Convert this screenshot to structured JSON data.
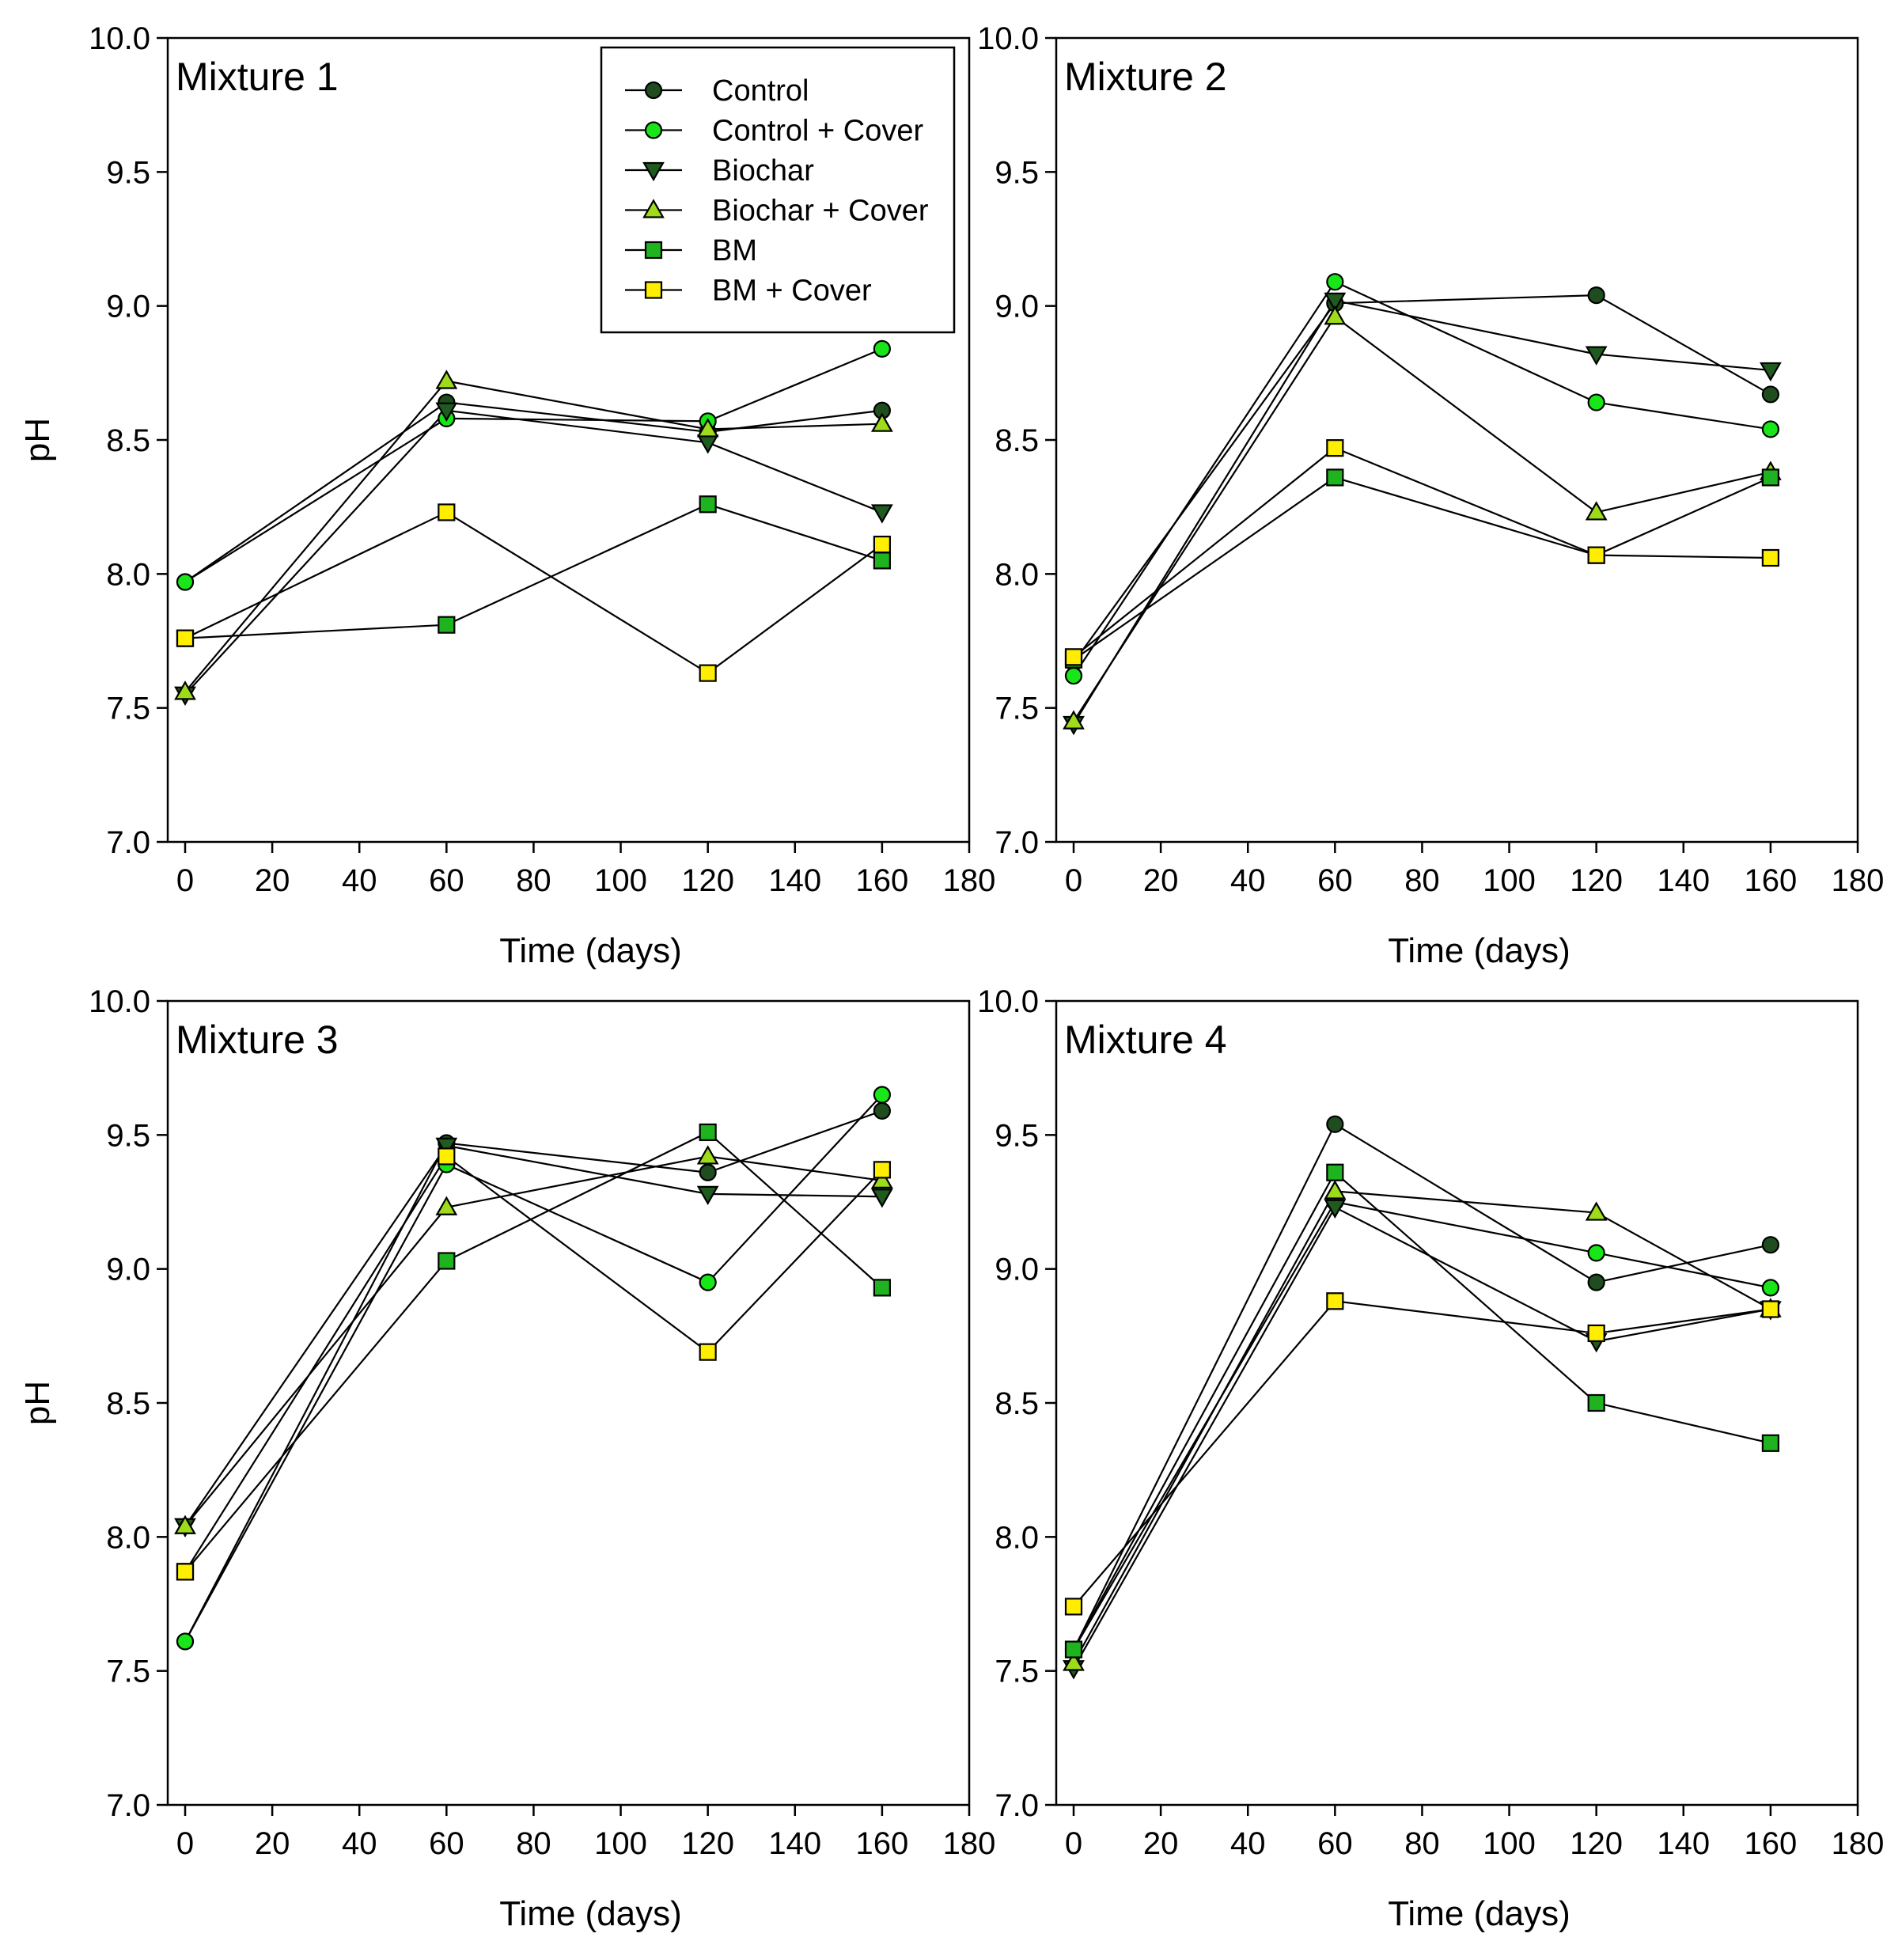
{
  "styles": {
    "Control": {
      "marker": "circle",
      "fill": "#1f4d1f"
    },
    "Control + Cover": {
      "marker": "circle",
      "fill": "#19e619"
    },
    "Biochar": {
      "marker": "triangle-down",
      "fill": "#1f5a1f"
    },
    "Biochar + Cover": {
      "marker": "triangle-up",
      "fill": "#9edb1a"
    },
    "BM": {
      "marker": "square",
      "fill": "#1fb31f"
    },
    "BM + Cover": {
      "marker": "square",
      "fill": "#ffee00"
    },
    "line_color": "#000000"
  },
  "chart_data": [
    {
      "type": "line",
      "title": "Mixture 1",
      "xlabel": "Time (days)",
      "ylabel": "pH",
      "xlim": [
        0,
        180
      ],
      "ylim": [
        7.0,
        10.0
      ],
      "xticks": [
        "0",
        "20",
        "40",
        "60",
        "80",
        "100",
        "120",
        "140",
        "160",
        "180"
      ],
      "yticks": [
        "7.0",
        "7.5",
        "8.0",
        "8.5",
        "9.0",
        "9.5",
        "10.0"
      ],
      "x": [
        0,
        60,
        120,
        160
      ],
      "legend": "top-right",
      "series": [
        {
          "name": "Control",
          "values": [
            7.97,
            8.64,
            8.53,
            8.61
          ]
        },
        {
          "name": "Control + Cover",
          "values": [
            7.97,
            8.58,
            8.57,
            8.84
          ]
        },
        {
          "name": "Biochar",
          "values": [
            7.55,
            8.61,
            8.49,
            8.23
          ]
        },
        {
          "name": "Biochar + Cover",
          "values": [
            7.56,
            8.72,
            8.54,
            8.56
          ]
        },
        {
          "name": "BM",
          "values": [
            7.76,
            7.81,
            8.26,
            8.05
          ]
        },
        {
          "name": "BM + Cover",
          "values": [
            7.76,
            8.23,
            7.63,
            8.11
          ]
        }
      ]
    },
    {
      "type": "line",
      "title": "Mixture 2",
      "xlabel": "Time (days)",
      "ylabel": "",
      "xlim": [
        0,
        180
      ],
      "ylim": [
        7.0,
        10.0
      ],
      "xticks": [
        "0",
        "20",
        "40",
        "60",
        "80",
        "100",
        "120",
        "140",
        "160",
        "180"
      ],
      "yticks": [
        "7.0",
        "7.5",
        "8.0",
        "8.5",
        "9.0",
        "9.5",
        "10.0"
      ],
      "x": [
        0,
        60,
        120,
        160
      ],
      "series": [
        {
          "name": "Control",
          "values": [
            7.67,
            9.01,
            9.04,
            8.67
          ]
        },
        {
          "name": "Control + Cover",
          "values": [
            7.62,
            9.09,
            8.64,
            8.54
          ]
        },
        {
          "name": "Biochar",
          "values": [
            7.44,
            9.02,
            8.82,
            8.76
          ]
        },
        {
          "name": "Biochar + Cover",
          "values": [
            7.45,
            8.96,
            8.23,
            8.38
          ]
        },
        {
          "name": "BM",
          "values": [
            7.68,
            8.36,
            8.07,
            8.36
          ]
        },
        {
          "name": "BM + Cover",
          "values": [
            7.69,
            8.47,
            8.07,
            8.06
          ]
        }
      ]
    },
    {
      "type": "line",
      "title": "Mixture 3",
      "xlabel": "Time (days)",
      "ylabel": "pH",
      "xlim": [
        0,
        180
      ],
      "ylim": [
        7.0,
        10.0
      ],
      "xticks": [
        "0",
        "20",
        "40",
        "60",
        "80",
        "100",
        "120",
        "140",
        "160",
        "180"
      ],
      "yticks": [
        "7.0",
        "7.5",
        "8.0",
        "8.5",
        "9.0",
        "9.5",
        "10.0"
      ],
      "x": [
        0,
        60,
        120,
        160
      ],
      "series": [
        {
          "name": "Control",
          "values": [
            7.61,
            9.47,
            9.36,
            9.59
          ]
        },
        {
          "name": "Control + Cover",
          "values": [
            7.61,
            9.39,
            8.95,
            9.65
          ]
        },
        {
          "name": "Biochar",
          "values": [
            8.04,
            9.46,
            9.28,
            9.27
          ]
        },
        {
          "name": "Biochar + Cover",
          "values": [
            8.04,
            9.23,
            9.42,
            9.33
          ]
        },
        {
          "name": "BM",
          "values": [
            7.87,
            9.03,
            9.51,
            8.93
          ]
        },
        {
          "name": "BM + Cover",
          "values": [
            7.87,
            9.42,
            8.69,
            9.37
          ]
        }
      ]
    },
    {
      "type": "line",
      "title": "Mixture 4",
      "xlabel": "Time (days)",
      "ylabel": "",
      "xlim": [
        0,
        180
      ],
      "ylim": [
        7.0,
        10.0
      ],
      "xticks": [
        "0",
        "20",
        "40",
        "60",
        "80",
        "100",
        "120",
        "140",
        "160",
        "180"
      ],
      "yticks": [
        "7.0",
        "7.5",
        "8.0",
        "8.5",
        "9.0",
        "9.5",
        "10.0"
      ],
      "x": [
        0,
        60,
        120,
        160
      ],
      "series": [
        {
          "name": "Control",
          "values": [
            7.58,
            9.54,
            8.95,
            9.09
          ]
        },
        {
          "name": "Control + Cover",
          "values": [
            7.58,
            9.25,
            9.06,
            8.93
          ]
        },
        {
          "name": "Biochar",
          "values": [
            7.51,
            9.23,
            8.73,
            8.85
          ]
        },
        {
          "name": "Biochar + Cover",
          "values": [
            7.53,
            9.29,
            9.21,
            8.85
          ]
        },
        {
          "name": "BM",
          "values": [
            7.58,
            9.36,
            8.5,
            8.35
          ]
        },
        {
          "name": "BM + Cover",
          "values": [
            7.74,
            8.88,
            8.76,
            8.85
          ]
        }
      ]
    }
  ]
}
